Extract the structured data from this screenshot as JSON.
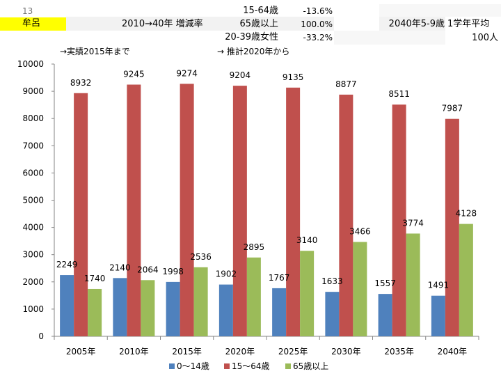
{
  "sheet": {
    "row_num": "13",
    "place": "牟呂",
    "rate_title": "2010→40年 増減率",
    "metric1_label": "15-64歳",
    "metric1_value": "-13.6%",
    "metric2_label": "65歳以上",
    "metric2_value": "100.0%",
    "metric3_label": "20-39歳女性",
    "metric3_value": "-33.2%",
    "age_label": "2040年5-9歳",
    "avg_label": "1学年平均",
    "avg_value": "100人",
    "note_actual": "→実績2015年まで",
    "note_forecast": "→ 推計2020年から"
  },
  "colors": {
    "series0": "#4f81bd",
    "series1": "#c0504d",
    "series2": "#9bbb59",
    "highlight": "#ffff00"
  },
  "chart_data": {
    "type": "bar",
    "categories": [
      "2005年",
      "2010年",
      "2015年",
      "2020年",
      "2025年",
      "2030年",
      "2035年",
      "2040年"
    ],
    "series": [
      {
        "name": "0～14歳",
        "values": [
          2249,
          2140,
          1998,
          1902,
          1767,
          1633,
          1557,
          1491
        ]
      },
      {
        "name": "15～64歳",
        "values": [
          8932,
          9245,
          9274,
          9204,
          9135,
          8877,
          8511,
          7987
        ]
      },
      {
        "name": "65歳以上",
        "values": [
          1740,
          2064,
          2536,
          2895,
          3140,
          3466,
          3774,
          4128
        ]
      }
    ],
    "ylim": [
      0,
      10000
    ],
    "yticks": [
      "0",
      "1000",
      "2000",
      "3000",
      "4000",
      "5000",
      "6000",
      "7000",
      "8000",
      "9000",
      "10000"
    ],
    "xlabel": "",
    "ylabel": "",
    "legend": "bottom",
    "grid": false
  }
}
